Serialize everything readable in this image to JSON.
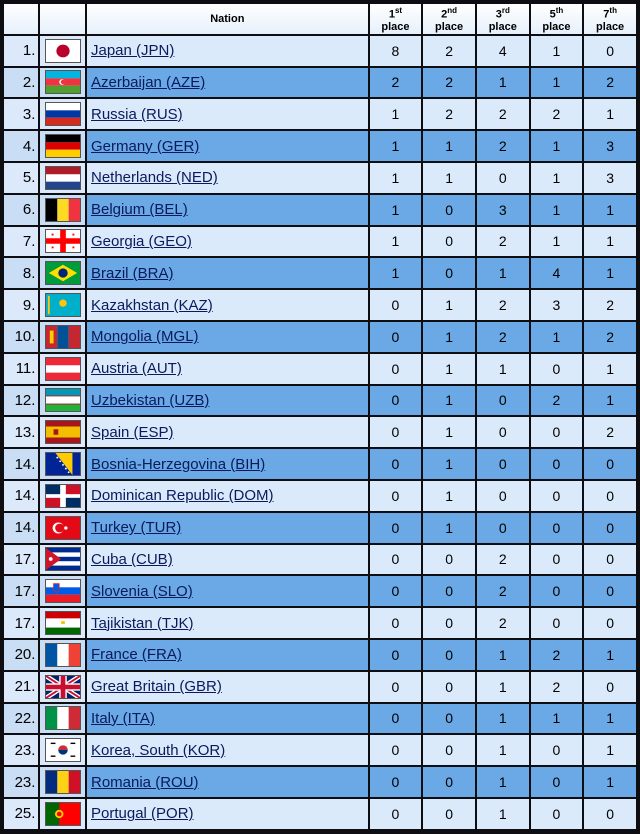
{
  "headers": {
    "rank": "",
    "flag": "",
    "nation": "Nation",
    "p1": {
      "n": "1",
      "sup": "st",
      "w": "place"
    },
    "p2": {
      "n": "2",
      "sup": "nd",
      "w": "place"
    },
    "p3": {
      "n": "3",
      "sup": "rd",
      "w": "place"
    },
    "p5": {
      "n": "5",
      "sup": "th",
      "w": "place"
    },
    "p7": {
      "n": "7",
      "sup": "th",
      "w": "place"
    }
  },
  "rows": [
    {
      "rank": "1.",
      "nation": "Japan (JPN)",
      "flag": "japan-flag-icon",
      "p1": "8",
      "p2": "2",
      "p3": "4",
      "p5": "1",
      "p7": "0"
    },
    {
      "rank": "2.",
      "nation": "Azerbaijan (AZE)",
      "flag": "azerbaijan-flag-icon",
      "p1": "2",
      "p2": "2",
      "p3": "1",
      "p5": "1",
      "p7": "2"
    },
    {
      "rank": "3.",
      "nation": "Russia (RUS)",
      "flag": "russia-flag-icon",
      "p1": "1",
      "p2": "2",
      "p3": "2",
      "p5": "2",
      "p7": "1"
    },
    {
      "rank": "4.",
      "nation": "Germany (GER)",
      "flag": "germany-flag-icon",
      "p1": "1",
      "p2": "1",
      "p3": "2",
      "p5": "1",
      "p7": "3"
    },
    {
      "rank": "5.",
      "nation": "Netherlands (NED)",
      "flag": "netherlands-flag-icon",
      "p1": "1",
      "p2": "1",
      "p3": "0",
      "p5": "1",
      "p7": "3"
    },
    {
      "rank": "6.",
      "nation": "Belgium (BEL)",
      "flag": "belgium-flag-icon",
      "p1": "1",
      "p2": "0",
      "p3": "3",
      "p5": "1",
      "p7": "1"
    },
    {
      "rank": "7.",
      "nation": "Georgia (GEO)",
      "flag": "georgia-flag-icon",
      "p1": "1",
      "p2": "0",
      "p3": "2",
      "p5": "1",
      "p7": "1"
    },
    {
      "rank": "8.",
      "nation": "Brazil (BRA)",
      "flag": "brazil-flag-icon",
      "p1": "1",
      "p2": "0",
      "p3": "1",
      "p5": "4",
      "p7": "1"
    },
    {
      "rank": "9.",
      "nation": "Kazakhstan (KAZ)",
      "flag": "kazakhstan-flag-icon",
      "p1": "0",
      "p2": "1",
      "p3": "2",
      "p5": "3",
      "p7": "2"
    },
    {
      "rank": "10.",
      "nation": "Mongolia (MGL)",
      "flag": "mongolia-flag-icon",
      "p1": "0",
      "p2": "1",
      "p3": "2",
      "p5": "1",
      "p7": "2"
    },
    {
      "rank": "11.",
      "nation": "Austria (AUT)",
      "flag": "austria-flag-icon",
      "p1": "0",
      "p2": "1",
      "p3": "1",
      "p5": "0",
      "p7": "1"
    },
    {
      "rank": "12.",
      "nation": "Uzbekistan (UZB)",
      "flag": "uzbekistan-flag-icon",
      "p1": "0",
      "p2": "1",
      "p3": "0",
      "p5": "2",
      "p7": "1"
    },
    {
      "rank": "13.",
      "nation": "Spain (ESP)",
      "flag": "spain-flag-icon",
      "p1": "0",
      "p2": "1",
      "p3": "0",
      "p5": "0",
      "p7": "2"
    },
    {
      "rank": "14.",
      "nation": "Bosnia-Herzegovina (BIH)",
      "flag": "bosnia-flag-icon",
      "p1": "0",
      "p2": "1",
      "p3": "0",
      "p5": "0",
      "p7": "0"
    },
    {
      "rank": "14.",
      "nation": "Dominican Republic (DOM)",
      "flag": "dominican-republic-flag-icon",
      "p1": "0",
      "p2": "1",
      "p3": "0",
      "p5": "0",
      "p7": "0"
    },
    {
      "rank": "14.",
      "nation": "Turkey (TUR)",
      "flag": "turkey-flag-icon",
      "p1": "0",
      "p2": "1",
      "p3": "0",
      "p5": "0",
      "p7": "0"
    },
    {
      "rank": "17.",
      "nation": "Cuba (CUB)",
      "flag": "cuba-flag-icon",
      "p1": "0",
      "p2": "0",
      "p3": "2",
      "p5": "0",
      "p7": "0"
    },
    {
      "rank": "17.",
      "nation": "Slovenia (SLO)",
      "flag": "slovenia-flag-icon",
      "p1": "0",
      "p2": "0",
      "p3": "2",
      "p5": "0",
      "p7": "0"
    },
    {
      "rank": "17.",
      "nation": "Tajikistan (TJK)",
      "flag": "tajikistan-flag-icon",
      "p1": "0",
      "p2": "0",
      "p3": "2",
      "p5": "0",
      "p7": "0"
    },
    {
      "rank": "20.",
      "nation": "France (FRA)",
      "flag": "france-flag-icon",
      "p1": "0",
      "p2": "0",
      "p3": "1",
      "p5": "2",
      "p7": "1"
    },
    {
      "rank": "21.",
      "nation": "Great Britain (GBR)",
      "flag": "great-britain-flag-icon",
      "p1": "0",
      "p2": "0",
      "p3": "1",
      "p5": "2",
      "p7": "0"
    },
    {
      "rank": "22.",
      "nation": "Italy (ITA)",
      "flag": "italy-flag-icon",
      "p1": "0",
      "p2": "0",
      "p3": "1",
      "p5": "1",
      "p7": "1"
    },
    {
      "rank": "23.",
      "nation": "Korea, South (KOR)",
      "flag": "south-korea-flag-icon",
      "p1": "0",
      "p2": "0",
      "p3": "1",
      "p5": "0",
      "p7": "1"
    },
    {
      "rank": "23.",
      "nation": "Romania (ROU)",
      "flag": "romania-flag-icon",
      "p1": "0",
      "p2": "0",
      "p3": "1",
      "p5": "0",
      "p7": "1"
    },
    {
      "rank": "25.",
      "nation": "Portugal (POR)",
      "flag": "portugal-flag-icon",
      "p1": "0",
      "p2": "0",
      "p3": "1",
      "p5": "0",
      "p7": "0"
    }
  ],
  "colors": {
    "row_light": "#dbeafb",
    "row_dark": "#6aa8e6",
    "border": "#0d0d12",
    "link": "#0a1a5c"
  }
}
